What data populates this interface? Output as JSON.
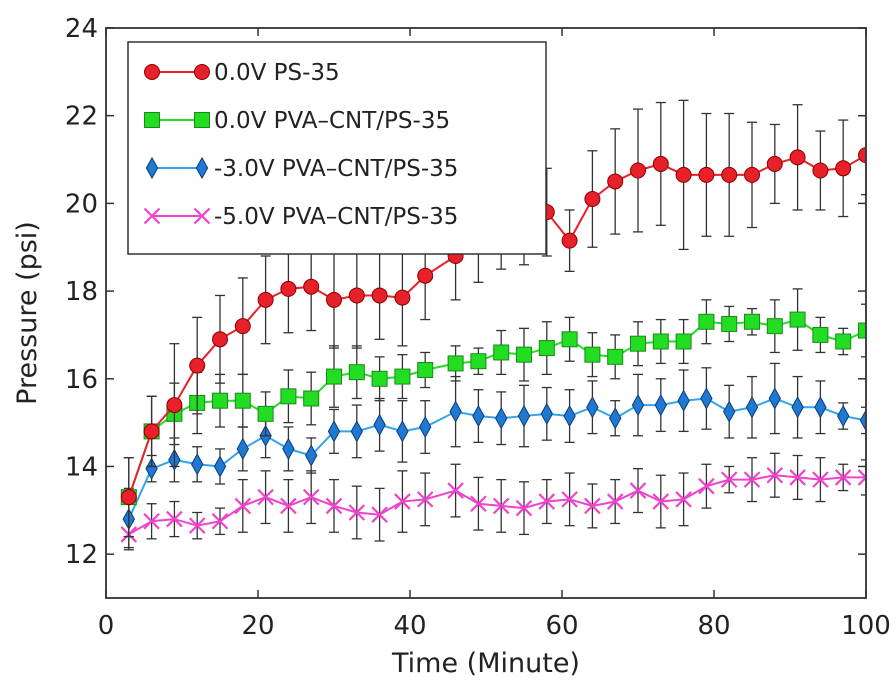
{
  "chart_data": {
    "type": "line",
    "xlabel": "Time (Minute)",
    "ylabel": "Pressure (psi)",
    "xlim": [
      0,
      100
    ],
    "ylim": [
      11,
      24
    ],
    "xticks": [
      0,
      20,
      40,
      60,
      80,
      100
    ],
    "yticks": [
      12,
      14,
      16,
      18,
      20,
      22,
      24
    ],
    "grid": false,
    "error_bars": true,
    "legend_position": "top-left",
    "x": [
      3,
      6,
      9,
      12,
      15,
      18,
      21,
      24,
      27,
      30,
      33,
      36,
      39,
      42,
      46,
      49,
      52,
      55,
      58,
      61,
      64,
      67,
      70,
      73,
      76,
      79,
      82,
      85,
      88,
      91,
      94,
      97,
      100
    ],
    "series": [
      {
        "name": "0.0V PS-35",
        "color": "#e8202a",
        "line_color": "#e8202a",
        "marker": "circle",
        "values": [
          13.3,
          14.8,
          15.4,
          16.3,
          16.9,
          17.2,
          17.8,
          18.05,
          18.1,
          17.8,
          17.9,
          17.9,
          17.85,
          18.35,
          18.8,
          19.2,
          19.5,
          19.5,
          19.8,
          19.15,
          20.1,
          20.5,
          20.75,
          20.9,
          20.65,
          20.65,
          20.65,
          20.65,
          20.9,
          21.05,
          20.75,
          20.8,
          21.1
        ],
        "errors": [
          0.9,
          0.8,
          1.4,
          1.1,
          1.0,
          1.1,
          1.0,
          1.0,
          1.0,
          1.1,
          1.2,
          1.0,
          1.1,
          1.0,
          1.0,
          1.0,
          1.0,
          0.9,
          1.0,
          0.7,
          1.1,
          1.2,
          1.4,
          1.4,
          1.7,
          1.4,
          1.4,
          1.2,
          0.9,
          1.2,
          0.9,
          1.1,
          0.9
        ]
      },
      {
        "name": "0.0V PVA–CNT/PS-35",
        "color": "#22dd22",
        "line_color": "#22dd22",
        "marker": "square",
        "values": [
          13.3,
          14.8,
          15.2,
          15.45,
          15.5,
          15.5,
          15.2,
          15.6,
          15.55,
          16.05,
          16.15,
          16.0,
          16.05,
          16.2,
          16.35,
          16.4,
          16.6,
          16.55,
          16.7,
          16.9,
          16.55,
          16.5,
          16.8,
          16.85,
          16.85,
          17.3,
          17.25,
          17.3,
          17.2,
          17.35,
          17.0,
          16.85,
          17.1
        ],
        "errors": [
          0.9,
          0.8,
          0.7,
          0.7,
          0.6,
          0.6,
          0.5,
          0.6,
          0.6,
          0.7,
          0.6,
          0.5,
          0.5,
          0.4,
          0.4,
          0.3,
          0.5,
          0.6,
          0.6,
          0.5,
          0.5,
          0.5,
          0.5,
          0.5,
          0.5,
          0.5,
          0.4,
          0.3,
          0.6,
          0.7,
          0.4,
          0.3,
          0.6
        ]
      },
      {
        "name": "-3.0V PVA–CNT/PS-35",
        "color": "#1f78d1",
        "line_color": "#33a4ee",
        "marker": "diamond",
        "values": [
          12.8,
          13.95,
          14.15,
          14.05,
          14.0,
          14.4,
          14.7,
          14.4,
          14.25,
          14.8,
          14.8,
          14.95,
          14.8,
          14.9,
          15.25,
          15.15,
          15.1,
          15.15,
          15.2,
          15.15,
          15.35,
          15.1,
          15.4,
          15.4,
          15.5,
          15.55,
          15.25,
          15.35,
          15.55,
          15.35,
          15.35,
          15.15,
          15.05
        ],
        "errors": [
          0.7,
          0.3,
          0.5,
          0.4,
          0.4,
          0.5,
          0.5,
          0.5,
          0.4,
          0.5,
          0.6,
          0.6,
          0.7,
          0.6,
          0.8,
          0.6,
          0.6,
          0.7,
          0.6,
          0.6,
          0.6,
          0.4,
          0.7,
          0.6,
          0.7,
          0.7,
          0.6,
          0.7,
          0.8,
          0.7,
          0.6,
          0.3,
          0.3
        ]
      },
      {
        "name": "-5.0V PVA–CNT/PS-35",
        "color": "#ee44cc",
        "line_color": "#ee44cc",
        "marker": "x",
        "values": [
          12.45,
          12.75,
          12.8,
          12.65,
          12.75,
          13.1,
          13.3,
          13.1,
          13.3,
          13.1,
          12.95,
          12.9,
          13.2,
          13.25,
          13.45,
          13.15,
          13.1,
          13.05,
          13.2,
          13.25,
          13.1,
          13.2,
          13.45,
          13.2,
          13.25,
          13.55,
          13.7,
          13.7,
          13.8,
          13.75,
          13.7,
          13.75,
          13.75
        ],
        "errors": [
          0.3,
          0.4,
          0.4,
          0.3,
          0.3,
          0.6,
          0.6,
          0.6,
          0.6,
          0.6,
          0.6,
          0.6,
          0.7,
          0.6,
          0.6,
          0.6,
          0.6,
          0.6,
          0.5,
          0.6,
          0.5,
          0.5,
          0.5,
          0.6,
          0.6,
          0.5,
          0.3,
          0.5,
          0.5,
          0.5,
          0.5,
          0.3,
          0.4
        ]
      }
    ]
  }
}
